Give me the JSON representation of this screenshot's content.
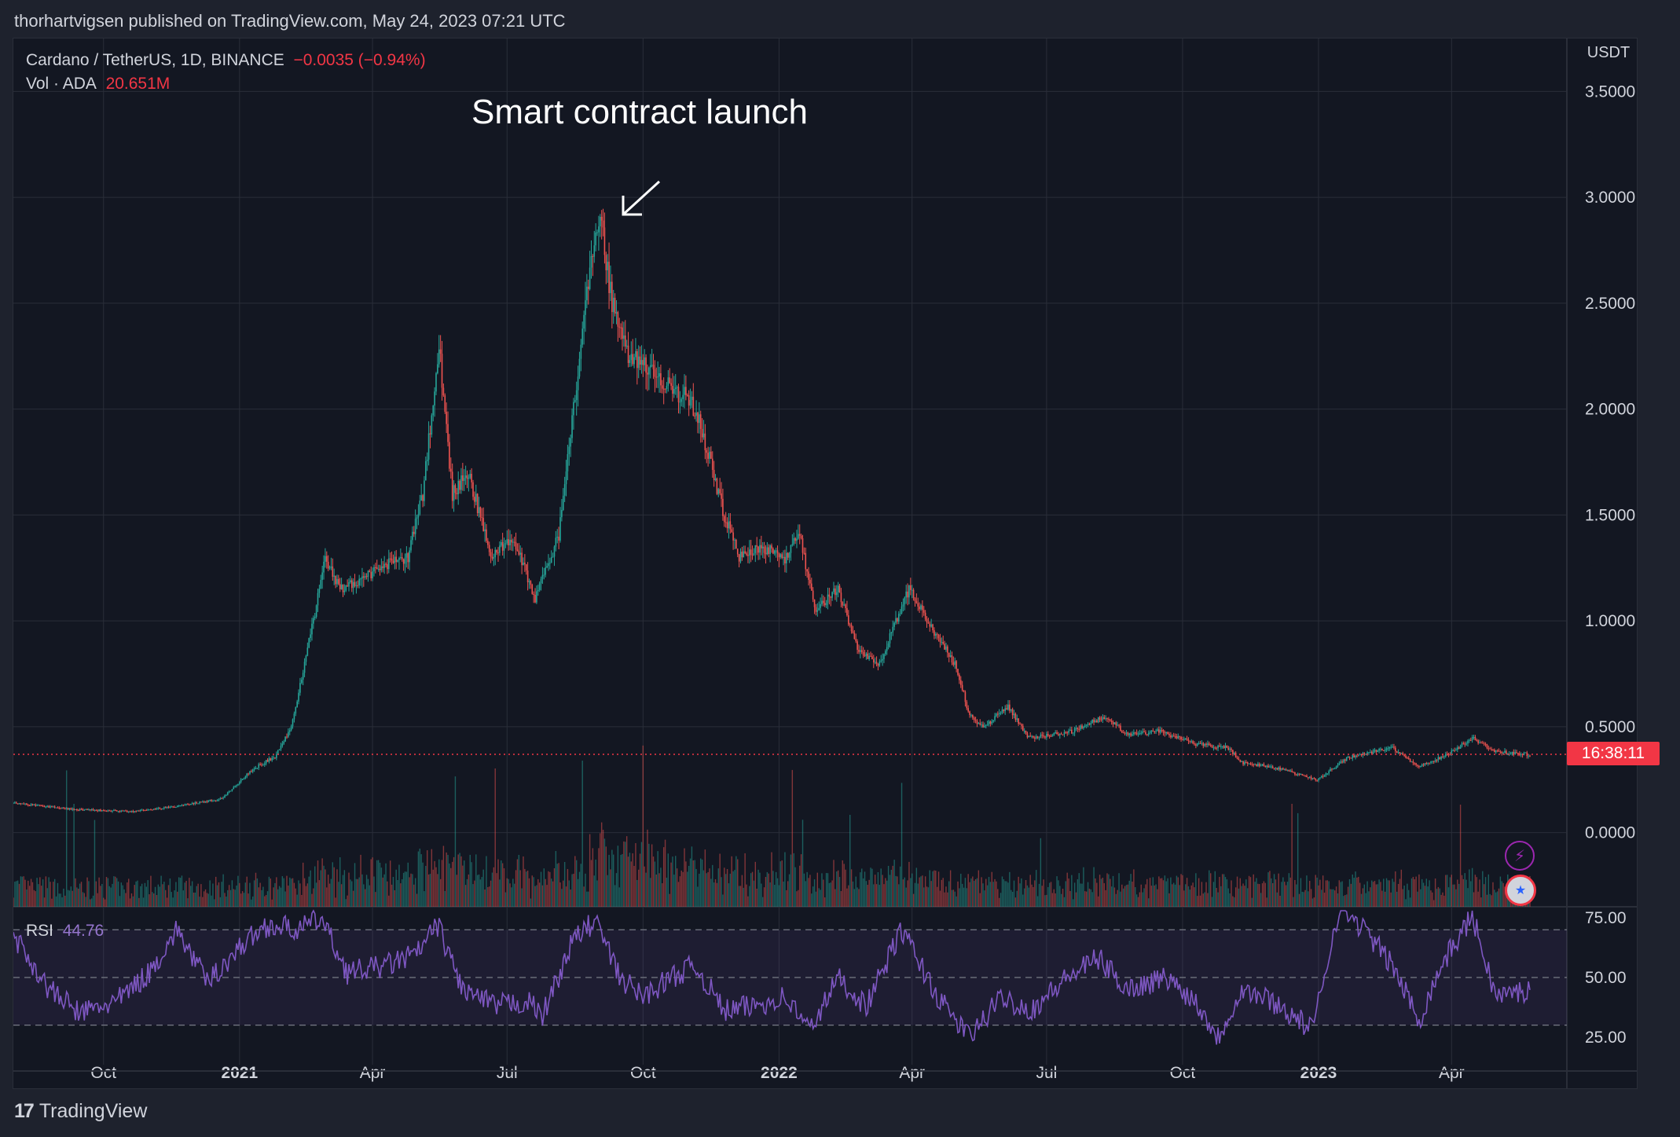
{
  "publisher_line": "thorhartvigsen published on TradingView.com, May 24, 2023 07:21 UTC",
  "legend": {
    "symbol": "Cardano / TetherUS, 1D, BINANCE",
    "change": "−0.0035 (−0.94%)",
    "vol_label": "Vol · ADA",
    "vol_value": "20.651M",
    "rsi_label": "RSI",
    "rsi_value": "44.76"
  },
  "annotation": {
    "text": "Smart contract launch"
  },
  "countdown": "16:38:11",
  "footer": {
    "logo_mark": "17",
    "brand": "TradingView"
  },
  "icons": {
    "lightning": "lightning-icon",
    "flag": "us-flag-icon"
  },
  "colors": {
    "up": "#26a69a",
    "down": "#ef5350",
    "rsi_line": "#7e57c2",
    "last_price_line": "#f23645",
    "grid": "#2a2e39",
    "background": "#131722"
  },
  "chart_data": [
    {
      "type": "candlestick",
      "title": "Cardano / TetherUS, 1D, BINANCE",
      "y_unit": "USDT",
      "ylim": [
        -0.35,
        3.75
      ],
      "y_ticks": [
        "3.5000",
        "3.0000",
        "2.5000",
        "2.0000",
        "1.5000",
        "1.0000",
        "0.5000",
        "0.0000"
      ],
      "x_ticks": [
        "Oct",
        "2021",
        "Apr",
        "Jul",
        "Oct",
        "2022",
        "Apr",
        "Jul",
        "Oct",
        "2023",
        "Apr"
      ],
      "x_range": [
        "2020-08-01",
        "2023-05-24"
      ],
      "last_price": 0.37,
      "price_path": [
        [
          "2020-08-01",
          0.14
        ],
        [
          "2020-09-10",
          0.11
        ],
        [
          "2020-10-20",
          0.1
        ],
        [
          "2020-11-15",
          0.12
        ],
        [
          "2020-12-20",
          0.16
        ],
        [
          "2021-01-10",
          0.3
        ],
        [
          "2021-01-25",
          0.36
        ],
        [
          "2021-02-05",
          0.5
        ],
        [
          "2021-02-20",
          1.0
        ],
        [
          "2021-02-28",
          1.3
        ],
        [
          "2021-03-10",
          1.15
        ],
        [
          "2021-03-25",
          1.2
        ],
        [
          "2021-04-05",
          1.25
        ],
        [
          "2021-04-25",
          1.3
        ],
        [
          "2021-05-05",
          1.6
        ],
        [
          "2021-05-16",
          2.3
        ],
        [
          "2021-05-25",
          1.6
        ],
        [
          "2021-06-05",
          1.7
        ],
        [
          "2021-06-20",
          1.3
        ],
        [
          "2021-07-05",
          1.4
        ],
        [
          "2021-07-20",
          1.1
        ],
        [
          "2021-08-05",
          1.4
        ],
        [
          "2021-08-15",
          2.0
        ],
        [
          "2021-08-25",
          2.6
        ],
        [
          "2021-09-02",
          2.9
        ],
        [
          "2021-09-10",
          2.5
        ],
        [
          "2021-09-20",
          2.25
        ],
        [
          "2021-10-05",
          2.2
        ],
        [
          "2021-10-20",
          2.1
        ],
        [
          "2021-11-01",
          2.05
        ],
        [
          "2021-11-10",
          1.9
        ],
        [
          "2021-11-25",
          1.5
        ],
        [
          "2021-12-05",
          1.3
        ],
        [
          "2021-12-20",
          1.35
        ],
        [
          "2022-01-05",
          1.3
        ],
        [
          "2022-01-15",
          1.4
        ],
        [
          "2022-01-25",
          1.05
        ],
        [
          "2022-02-10",
          1.15
        ],
        [
          "2022-02-24",
          0.85
        ],
        [
          "2022-03-10",
          0.8
        ],
        [
          "2022-03-30",
          1.15
        ],
        [
          "2022-04-15",
          0.95
        ],
        [
          "2022-04-30",
          0.8
        ],
        [
          "2022-05-10",
          0.55
        ],
        [
          "2022-05-20",
          0.5
        ],
        [
          "2022-06-05",
          0.6
        ],
        [
          "2022-06-18",
          0.45
        ],
        [
          "2022-07-15",
          0.47
        ],
        [
          "2022-08-10",
          0.55
        ],
        [
          "2022-08-25",
          0.46
        ],
        [
          "2022-09-15",
          0.48
        ],
        [
          "2022-10-10",
          0.42
        ],
        [
          "2022-11-01",
          0.4
        ],
        [
          "2022-11-10",
          0.33
        ],
        [
          "2022-12-01",
          0.31
        ],
        [
          "2022-12-31",
          0.25
        ],
        [
          "2023-01-20",
          0.35
        ],
        [
          "2023-02-05",
          0.38
        ],
        [
          "2023-02-20",
          0.4
        ],
        [
          "2023-03-10",
          0.31
        ],
        [
          "2023-04-01",
          0.38
        ],
        [
          "2023-04-15",
          0.45
        ],
        [
          "2023-05-01",
          0.38
        ],
        [
          "2023-05-24",
          0.37
        ]
      ]
    },
    {
      "type": "histogram",
      "title": "Vol · ADA",
      "last_value": "20.651M"
    },
    {
      "type": "line",
      "title": "RSI",
      "last_value": 44.76,
      "ylim": [
        20,
        78
      ],
      "y_ticks": [
        "75.00",
        "50.00",
        "25.00"
      ],
      "bands": [
        70,
        50,
        30
      ],
      "rsi_path": [
        [
          "2020-08-01",
          68
        ],
        [
          "2020-08-25",
          45
        ],
        [
          "2020-09-15",
          35
        ],
        [
          "2020-10-10",
          40
        ],
        [
          "2020-11-01",
          52
        ],
        [
          "2020-11-20",
          70
        ],
        [
          "2020-12-10",
          48
        ],
        [
          "2021-01-05",
          65
        ],
        [
          "2021-01-20",
          72
        ],
        [
          "2021-02-10",
          70
        ],
        [
          "2021-02-25",
          75
        ],
        [
          "2021-03-15",
          52
        ],
        [
          "2021-04-10",
          55
        ],
        [
          "2021-05-01",
          60
        ],
        [
          "2021-05-15",
          72
        ],
        [
          "2021-06-01",
          45
        ],
        [
          "2021-06-22",
          38
        ],
        [
          "2021-07-15",
          40
        ],
        [
          "2021-07-25",
          34
        ],
        [
          "2021-08-15",
          66
        ],
        [
          "2021-08-30",
          74
        ],
        [
          "2021-09-15",
          50
        ],
        [
          "2021-10-01",
          42
        ],
        [
          "2021-10-20",
          50
        ],
        [
          "2021-11-05",
          55
        ],
        [
          "2021-11-25",
          36
        ],
        [
          "2021-12-15",
          38
        ],
        [
          "2022-01-05",
          42
        ],
        [
          "2022-01-22",
          28
        ],
        [
          "2022-02-10",
          50
        ],
        [
          "2022-03-01",
          38
        ],
        [
          "2022-03-25",
          70
        ],
        [
          "2022-04-20",
          40
        ],
        [
          "2022-05-10",
          25
        ],
        [
          "2022-06-01",
          42
        ],
        [
          "2022-06-20",
          36
        ],
        [
          "2022-07-15",
          50
        ],
        [
          "2022-08-05",
          58
        ],
        [
          "2022-08-25",
          45
        ],
        [
          "2022-09-20",
          50
        ],
        [
          "2022-10-10",
          40
        ],
        [
          "2022-10-25",
          25
        ],
        [
          "2022-11-10",
          45
        ],
        [
          "2022-12-01",
          40
        ],
        [
          "2022-12-28",
          28
        ],
        [
          "2023-01-15",
          80
        ],
        [
          "2023-02-01",
          70
        ],
        [
          "2023-02-20",
          55
        ],
        [
          "2023-03-10",
          32
        ],
        [
          "2023-03-25",
          55
        ],
        [
          "2023-04-15",
          76
        ],
        [
          "2023-05-01",
          42
        ],
        [
          "2023-05-24",
          44.76
        ]
      ]
    }
  ]
}
